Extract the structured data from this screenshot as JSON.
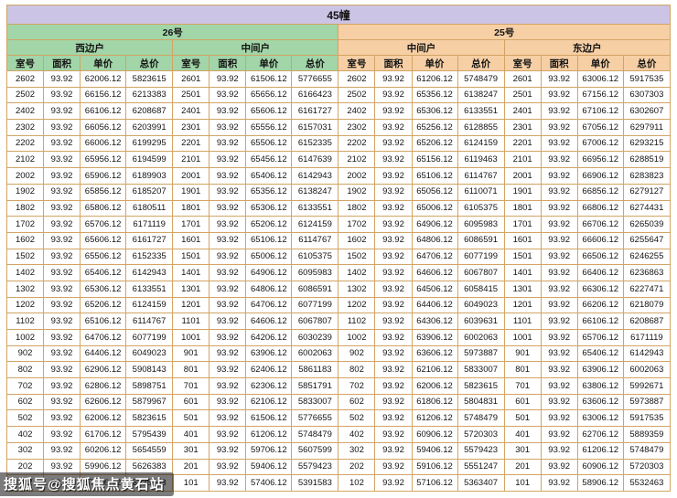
{
  "page_title": "45幢",
  "watermark": "搜狐号@搜狐焦点黄石站",
  "colors": {
    "title_bg": "#cbc4e4",
    "building26_bg": "#a2d5a8",
    "building25_bg": "#f6cfa5",
    "border": "#d2a464"
  },
  "table": {
    "buildings": [
      {
        "name": "26号",
        "unit_types": [
          "西边户",
          "中间户"
        ]
      },
      {
        "name": "25号",
        "unit_types": [
          "中间户",
          "东边户"
        ]
      }
    ],
    "column_headers": [
      "室号",
      "面积",
      "单价",
      "总价"
    ],
    "rows": [
      [
        "2602",
        "93.92",
        "62006.12",
        "5823615",
        "2601",
        "93.92",
        "61506.12",
        "5776655",
        "2602",
        "93.92",
        "61206.12",
        "5748479",
        "2601",
        "93.92",
        "63006.12",
        "5917535"
      ],
      [
        "2502",
        "93.92",
        "66156.12",
        "6213383",
        "2501",
        "93.92",
        "65656.12",
        "6166423",
        "2502",
        "93.92",
        "65356.12",
        "6138247",
        "2501",
        "93.92",
        "67156.12",
        "6307303"
      ],
      [
        "2402",
        "93.92",
        "66106.12",
        "6208687",
        "2401",
        "93.92",
        "65606.12",
        "6161727",
        "2402",
        "93.92",
        "65306.12",
        "6133551",
        "2401",
        "93.92",
        "67106.12",
        "6302607"
      ],
      [
        "2302",
        "93.92",
        "66056.12",
        "6203991",
        "2301",
        "93.92",
        "65556.12",
        "6157031",
        "2302",
        "93.92",
        "65256.12",
        "6128855",
        "2301",
        "93.92",
        "67056.12",
        "6297911"
      ],
      [
        "2202",
        "93.92",
        "66006.12",
        "6199295",
        "2201",
        "93.92",
        "65506.12",
        "6152335",
        "2202",
        "93.92",
        "65206.12",
        "6124159",
        "2201",
        "93.92",
        "67006.12",
        "6293215"
      ],
      [
        "2102",
        "93.92",
        "65956.12",
        "6194599",
        "2101",
        "93.92",
        "65456.12",
        "6147639",
        "2102",
        "93.92",
        "65156.12",
        "6119463",
        "2101",
        "93.92",
        "66956.12",
        "6288519"
      ],
      [
        "2002",
        "93.92",
        "65906.12",
        "6189903",
        "2001",
        "93.92",
        "65406.12",
        "6142943",
        "2002",
        "93.92",
        "65106.12",
        "6114767",
        "2001",
        "93.92",
        "66906.12",
        "6283823"
      ],
      [
        "1902",
        "93.92",
        "65856.12",
        "6185207",
        "1901",
        "93.92",
        "65356.12",
        "6138247",
        "1902",
        "93.92",
        "65056.12",
        "6110071",
        "1901",
        "93.92",
        "66856.12",
        "6279127"
      ],
      [
        "1802",
        "93.92",
        "65806.12",
        "6180511",
        "1801",
        "93.92",
        "65306.12",
        "6133551",
        "1802",
        "93.92",
        "65006.12",
        "6105375",
        "1801",
        "93.92",
        "66806.12",
        "6274431"
      ],
      [
        "1702",
        "93.92",
        "65706.12",
        "6171119",
        "1701",
        "93.92",
        "65206.12",
        "6124159",
        "1702",
        "93.92",
        "64906.12",
        "6095983",
        "1701",
        "93.92",
        "66706.12",
        "6265039"
      ],
      [
        "1602",
        "93.92",
        "65606.12",
        "6161727",
        "1601",
        "93.92",
        "65106.12",
        "6114767",
        "1602",
        "93.92",
        "64806.12",
        "6086591",
        "1601",
        "93.92",
        "66606.12",
        "6255647"
      ],
      [
        "1502",
        "93.92",
        "65506.12",
        "6152335",
        "1501",
        "93.92",
        "65006.12",
        "6105375",
        "1502",
        "93.92",
        "64706.12",
        "6077199",
        "1501",
        "93.92",
        "66506.12",
        "6246255"
      ],
      [
        "1402",
        "93.92",
        "65406.12",
        "6142943",
        "1401",
        "93.92",
        "64906.12",
        "6095983",
        "1402",
        "93.92",
        "64606.12",
        "6067807",
        "1401",
        "93.92",
        "66406.12",
        "6236863"
      ],
      [
        "1302",
        "93.92",
        "65306.12",
        "6133551",
        "1301",
        "93.92",
        "64806.12",
        "6086591",
        "1302",
        "93.92",
        "64506.12",
        "6058415",
        "1301",
        "93.92",
        "66306.12",
        "6227471"
      ],
      [
        "1202",
        "93.92",
        "65206.12",
        "6124159",
        "1201",
        "93.92",
        "64706.12",
        "6077199",
        "1202",
        "93.92",
        "64406.12",
        "6049023",
        "1201",
        "93.92",
        "66206.12",
        "6218079"
      ],
      [
        "1102",
        "93.92",
        "65106.12",
        "6114767",
        "1101",
        "93.92",
        "64606.12",
        "6067807",
        "1102",
        "93.92",
        "64306.12",
        "6039631",
        "1101",
        "93.92",
        "66106.12",
        "6208687"
      ],
      [
        "1002",
        "93.92",
        "64706.12",
        "6077199",
        "1001",
        "93.92",
        "64206.12",
        "6030239",
        "1002",
        "93.92",
        "63906.12",
        "6002063",
        "1001",
        "93.92",
        "65706.12",
        "6171119"
      ],
      [
        "902",
        "93.92",
        "64406.12",
        "6049023",
        "901",
        "93.92",
        "63906.12",
        "6002063",
        "902",
        "93.92",
        "63606.12",
        "5973887",
        "901",
        "93.92",
        "65406.12",
        "6142943"
      ],
      [
        "802",
        "93.92",
        "62906.12",
        "5908143",
        "801",
        "93.92",
        "62406.12",
        "5861183",
        "802",
        "93.92",
        "62106.12",
        "5833007",
        "801",
        "93.92",
        "63906.12",
        "6002063"
      ],
      [
        "702",
        "93.92",
        "62806.12",
        "5898751",
        "701",
        "93.92",
        "62306.12",
        "5851791",
        "702",
        "93.92",
        "62006.12",
        "5823615",
        "701",
        "93.92",
        "63806.12",
        "5992671"
      ],
      [
        "602",
        "93.92",
        "62606.12",
        "5879967",
        "601",
        "93.92",
        "62106.12",
        "5833007",
        "602",
        "93.92",
        "61806.12",
        "5804831",
        "601",
        "93.92",
        "63606.12",
        "5973887"
      ],
      [
        "502",
        "93.92",
        "62006.12",
        "5823615",
        "501",
        "93.92",
        "61506.12",
        "5776655",
        "502",
        "93.92",
        "61206.12",
        "5748479",
        "501",
        "93.92",
        "63006.12",
        "5917535"
      ],
      [
        "402",
        "93.92",
        "61706.12",
        "5795439",
        "401",
        "93.92",
        "61206.12",
        "5748479",
        "402",
        "93.92",
        "60906.12",
        "5720303",
        "401",
        "93.92",
        "62706.12",
        "5889359"
      ],
      [
        "302",
        "93.92",
        "60206.12",
        "5654559",
        "301",
        "93.92",
        "59706.12",
        "5607599",
        "302",
        "93.92",
        "59406.12",
        "5579423",
        "301",
        "93.92",
        "61206.12",
        "5748479"
      ],
      [
        "202",
        "93.92",
        "59906.12",
        "5626383",
        "201",
        "93.92",
        "59406.12",
        "5579423",
        "202",
        "93.92",
        "59106.12",
        "5551247",
        "201",
        "93.92",
        "60906.12",
        "5720303"
      ],
      [
        "102",
        "93.92",
        "57906.12",
        "5438543",
        "101",
        "93.92",
        "57406.12",
        "5391583",
        "102",
        "93.92",
        "57106.12",
        "5363407",
        "101",
        "93.92",
        "58906.12",
        "5532463"
      ]
    ]
  }
}
